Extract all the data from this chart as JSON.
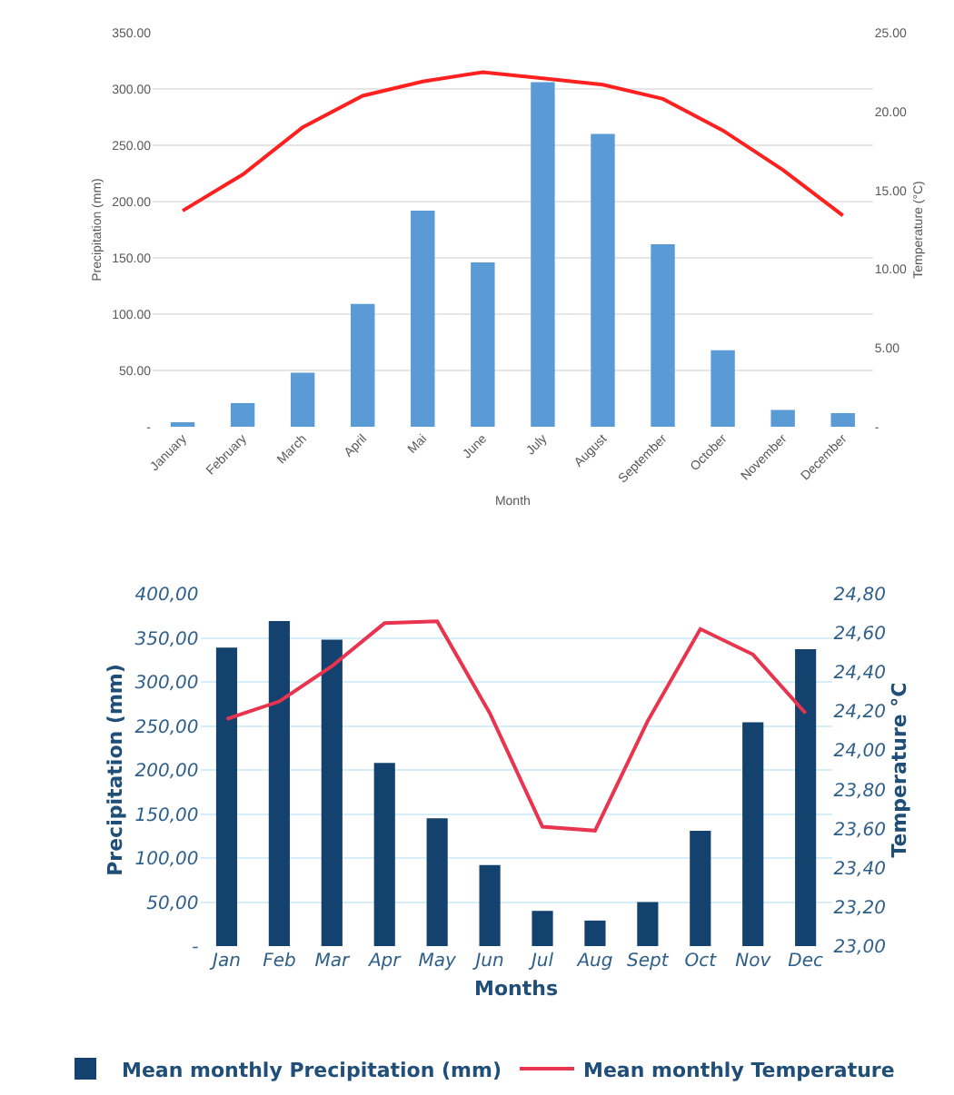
{
  "chart_data": [
    {
      "type": "bar",
      "xlabel": "Month",
      "ylabel": "Precipitation (mm)",
      "y2label": "Temperature (°C)",
      "categories": [
        "January",
        "February",
        "March",
        "April",
        "Mai",
        "June",
        "July",
        "August",
        "September",
        "October",
        "November",
        "December"
      ],
      "series": [
        {
          "color": "#5b9bd5",
          "values": [
            4,
            21,
            48,
            109,
            192,
            146,
            306,
            260,
            162,
            68,
            15,
            12
          ]
        },
        {
          "type": "line",
          "axis": "y2",
          "color": "#ff2020",
          "marker": "none",
          "line_style": "solid",
          "values": [
            13.7,
            16.0,
            19.0,
            21.0,
            21.9,
            22.5,
            22.1,
            21.7,
            20.8,
            18.8,
            16.3,
            13.4
          ]
        }
      ],
      "ylim": [
        0,
        350
      ],
      "yticks": [
        {
          "value": 0,
          "label": "-"
        },
        {
          "value": 50,
          "label": "50.00"
        },
        {
          "value": 100,
          "label": "100.00"
        },
        {
          "value": 150,
          "label": "150.00"
        },
        {
          "value": 200,
          "label": "200.00"
        },
        {
          "value": 250,
          "label": "250.00"
        },
        {
          "value": 300,
          "label": "300.00"
        },
        {
          "value": 350,
          "label": "350.00"
        }
      ],
      "y2lim": [
        0,
        25
      ],
      "y2ticks": [
        {
          "value": 0,
          "label": "-"
        },
        {
          "value": 5,
          "label": "5.00"
        },
        {
          "value": 10,
          "label": "10.00"
        },
        {
          "value": 15,
          "label": "15.00"
        },
        {
          "value": 20,
          "label": "20.00"
        },
        {
          "value": 25,
          "label": "25.00"
        }
      ],
      "grid": "y"
    },
    {
      "type": "bar",
      "xlabel": "Months",
      "ylabel": "Precipitation (mm)",
      "y2label": "Temperature °C",
      "categories": [
        "Jan",
        "Feb",
        "Mar",
        "Apr",
        "May",
        "Jun",
        "Jul",
        "Aug",
        "Sept",
        "Oct",
        "Nov",
        "Dec"
      ],
      "series": [
        {
          "name": "Mean monthly Precipitation (mm)",
          "color": "#14426e",
          "values": [
            339,
            369,
            348,
            208,
            145,
            92,
            40,
            29,
            50,
            131,
            254,
            337
          ]
        },
        {
          "type": "line",
          "axis": "y2",
          "name": "Mean monthly Temperature",
          "color": "#e8344e",
          "marker": "none",
          "line_style": "solid",
          "values": [
            24.16,
            24.25,
            24.43,
            24.65,
            24.66,
            24.19,
            23.61,
            23.59,
            24.15,
            24.62,
            24.49,
            24.19
          ]
        }
      ],
      "ylim": [
        0,
        400
      ],
      "yticks": [
        {
          "value": 0,
          "label": "-"
        },
        {
          "value": 50,
          "label": "50,00"
        },
        {
          "value": 100,
          "label": "100,00"
        },
        {
          "value": 150,
          "label": "150,00"
        },
        {
          "value": 200,
          "label": "200,00"
        },
        {
          "value": 250,
          "label": "250,00"
        },
        {
          "value": 300,
          "label": "300,00"
        },
        {
          "value": 350,
          "label": "350,00"
        },
        {
          "value": 400,
          "label": "400,00"
        }
      ],
      "y2lim": [
        23.0,
        24.8
      ],
      "y2ticks": [
        {
          "value": 23.0,
          "label": "23,00"
        },
        {
          "value": 23.2,
          "label": "23,20"
        },
        {
          "value": 23.4,
          "label": "23,40"
        },
        {
          "value": 23.6,
          "label": "23,60"
        },
        {
          "value": 23.8,
          "label": "23,80"
        },
        {
          "value": 24.0,
          "label": "24,00"
        },
        {
          "value": 24.2,
          "label": "24,20"
        },
        {
          "value": 24.4,
          "label": "24,40"
        },
        {
          "value": 24.6,
          "label": "24,60"
        },
        {
          "value": 24.8,
          "label": "24,80"
        }
      ],
      "grid": "y",
      "legend": "bottom"
    }
  ]
}
